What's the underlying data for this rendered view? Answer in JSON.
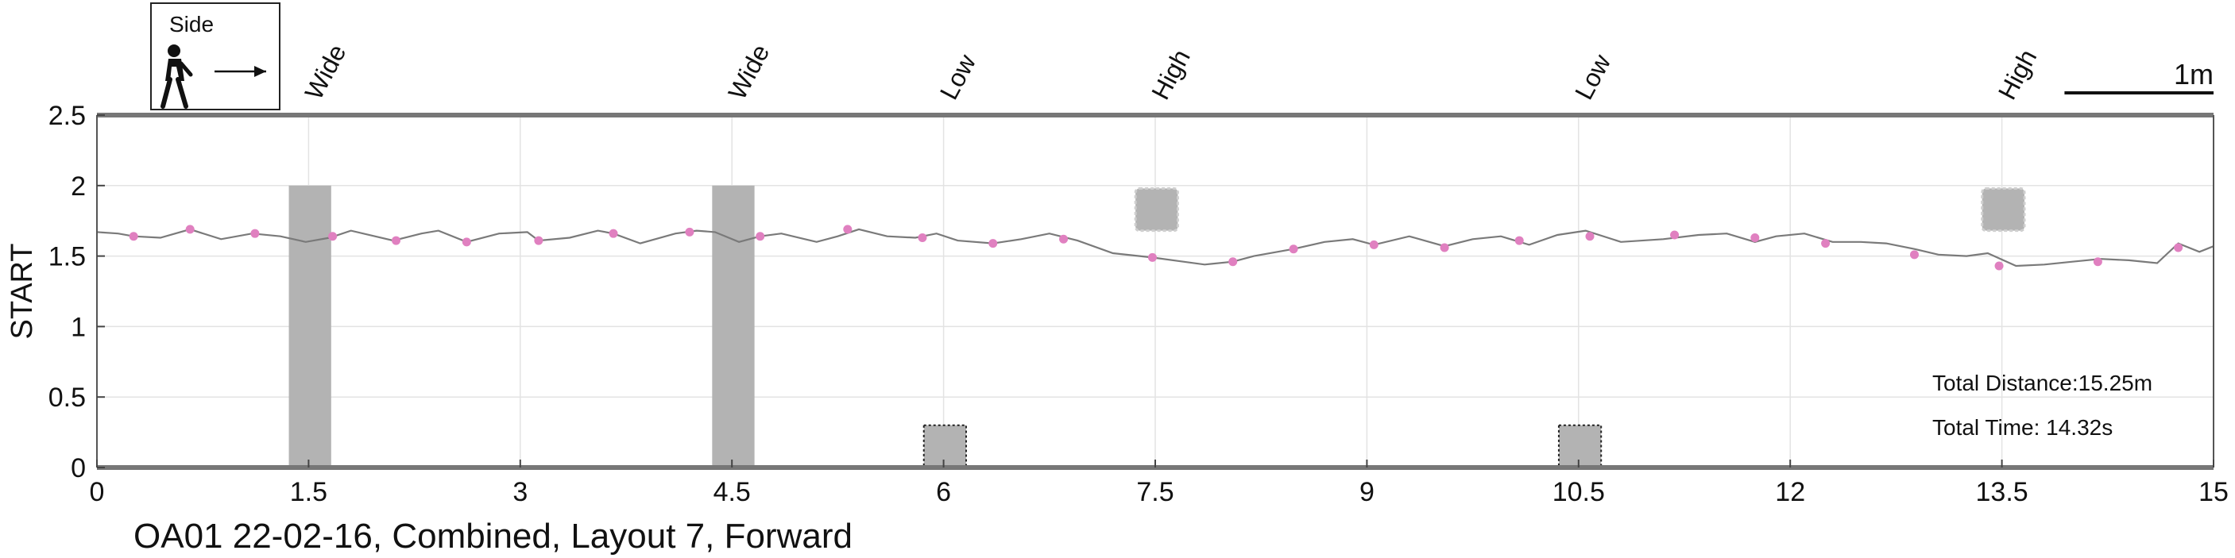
{
  "chart_data": {
    "type": "line",
    "title": "OA01 22-02-16, Combined, Layout 7, Forward",
    "ylabel": "START",
    "xlabel": "",
    "xlim": [
      0,
      15
    ],
    "ylim": [
      0,
      2.5
    ],
    "xticks": [
      0,
      1.5,
      3,
      4.5,
      6,
      7.5,
      9,
      10.5,
      12,
      13.5,
      15
    ],
    "xtick_labels": [
      "0",
      "1.5",
      "3",
      "4.5",
      "6",
      "7.5",
      "9",
      "10.5",
      "12",
      "13.5",
      "15"
    ],
    "yticks": [
      0,
      0.5,
      1,
      1.5,
      2,
      2.5
    ],
    "ytick_labels": [
      "0",
      "0.5",
      "1",
      "1.5",
      "2",
      "2.5"
    ],
    "grid": true,
    "legend": {
      "label": "Side",
      "icon": "walking-person-icon",
      "direction_icon": "arrow-right-icon"
    },
    "scale_bar": {
      "label": "1m",
      "length": 1.0
    },
    "annotations": [
      "Total Distance:15.25m",
      "Total Time: 14.32s"
    ],
    "obstacles": [
      {
        "label": "Wide",
        "kind": "wide",
        "x_start": 1.36,
        "x_end": 1.66,
        "y_bottom": 0,
        "y_top": 2.0
      },
      {
        "label": "Wide",
        "kind": "wide",
        "x_start": 4.36,
        "x_end": 4.66,
        "y_bottom": 0,
        "y_top": 2.0
      },
      {
        "label": "Low",
        "kind": "low",
        "x_start": 5.86,
        "x_end": 6.16,
        "y_bottom": 0,
        "y_top": 0.3
      },
      {
        "label": "High",
        "kind": "high",
        "x_start": 7.36,
        "x_end": 7.66,
        "y_bottom": 1.68,
        "y_top": 1.98
      },
      {
        "label": "Low",
        "kind": "low",
        "x_start": 10.36,
        "x_end": 10.66,
        "y_bottom": 0,
        "y_top": 0.3
      },
      {
        "label": "High",
        "kind": "high",
        "x_start": 13.36,
        "x_end": 13.66,
        "y_bottom": 1.68,
        "y_top": 1.98
      }
    ],
    "series": [
      {
        "color": "#7a7a7a",
        "x": [
          0,
          0.15,
          0.26,
          0.45,
          0.66,
          0.88,
          1.1,
          1.3,
          1.48,
          1.65,
          1.8,
          1.97,
          2.1,
          2.3,
          2.42,
          2.62,
          2.85,
          3.05,
          3.13,
          3.35,
          3.55,
          3.66,
          3.85,
          4.1,
          4.25,
          4.38,
          4.55,
          4.7,
          4.85,
          5.1,
          5.25,
          5.4,
          5.6,
          5.8,
          5.95,
          6.1,
          6.35,
          6.55,
          6.75,
          6.95,
          7.2,
          7.48,
          7.7,
          7.85,
          8.05,
          8.2,
          8.48,
          8.7,
          8.9,
          9.05,
          9.3,
          9.55,
          9.75,
          9.95,
          10.15,
          10.35,
          10.55,
          10.8,
          11.1,
          11.35,
          11.55,
          11.75,
          11.9,
          12.1,
          12.3,
          12.5,
          12.68,
          12.88,
          13.05,
          13.25,
          13.4,
          13.6,
          13.8,
          14.0,
          14.2,
          14.4,
          14.6,
          14.75,
          14.9,
          15.0
        ],
        "y": [
          1.67,
          1.66,
          1.64,
          1.63,
          1.69,
          1.62,
          1.66,
          1.64,
          1.6,
          1.63,
          1.68,
          1.64,
          1.61,
          1.66,
          1.68,
          1.6,
          1.66,
          1.67,
          1.61,
          1.63,
          1.68,
          1.66,
          1.59,
          1.66,
          1.68,
          1.67,
          1.6,
          1.64,
          1.66,
          1.6,
          1.64,
          1.69,
          1.64,
          1.63,
          1.66,
          1.61,
          1.59,
          1.62,
          1.66,
          1.61,
          1.52,
          1.49,
          1.46,
          1.44,
          1.46,
          1.5,
          1.55,
          1.6,
          1.62,
          1.58,
          1.64,
          1.57,
          1.62,
          1.64,
          1.58,
          1.65,
          1.68,
          1.6,
          1.62,
          1.65,
          1.66,
          1.6,
          1.64,
          1.66,
          1.6,
          1.6,
          1.59,
          1.55,
          1.51,
          1.5,
          1.52,
          1.43,
          1.44,
          1.46,
          1.48,
          1.47,
          1.45,
          1.59,
          1.53,
          1.57
        ]
      },
      {
        "type": "scatter",
        "color": "#e080c0",
        "x": [
          0.26,
          0.66,
          1.12,
          1.67,
          2.12,
          2.62,
          3.13,
          3.66,
          4.2,
          4.7,
          5.32,
          5.85,
          6.35,
          6.85,
          7.48,
          8.05,
          8.48,
          9.05,
          9.55,
          10.08,
          10.58,
          11.18,
          11.75,
          12.25,
          12.88,
          13.48,
          14.18,
          14.75
        ],
        "y": [
          1.64,
          1.69,
          1.66,
          1.64,
          1.61,
          1.6,
          1.61,
          1.66,
          1.67,
          1.64,
          1.69,
          1.63,
          1.59,
          1.62,
          1.49,
          1.46,
          1.55,
          1.58,
          1.56,
          1.61,
          1.64,
          1.65,
          1.63,
          1.59,
          1.51,
          1.43,
          1.46,
          1.56
        ]
      }
    ]
  }
}
